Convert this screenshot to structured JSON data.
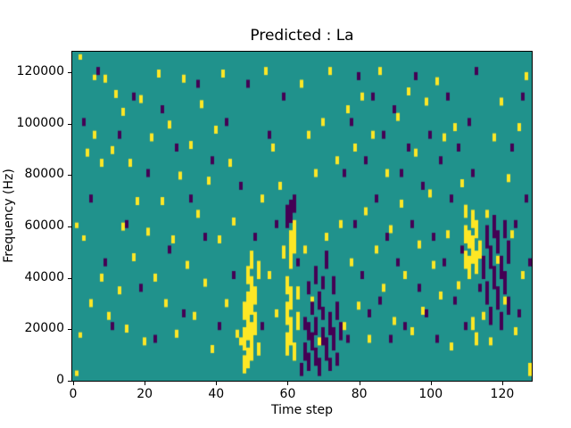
{
  "figure": {
    "title": "Predicted : La",
    "xlabel": "Time step",
    "ylabel": "Frequency (Hz)"
  },
  "chart_data": {
    "type": "heatmap",
    "title": "Predicted : La",
    "xlabel": "Time step",
    "ylabel": "Frequency (Hz)",
    "x_range": [
      0,
      129
    ],
    "y_range": [
      0,
      129000
    ],
    "x_ticks": [
      0,
      20,
      40,
      60,
      80,
      100,
      120
    ],
    "y_ticks": [
      0,
      20000,
      40000,
      60000,
      80000,
      100000,
      120000
    ],
    "grid": {
      "cols": 129,
      "rows": 129,
      "row_unit_hz": 1000
    },
    "colors": {
      "background": "#20928c",
      "high": "#fde725",
      "low": "#440154"
    },
    "legend": "none",
    "value_classes": [
      "mid (teal)",
      "high (yellow)",
      "low (purple)"
    ],
    "cells": {
      "yellow_runs": [
        [
          1,
          60,
          61
        ],
        [
          1,
          2,
          3
        ],
        [
          2,
          17,
          18
        ],
        [
          2,
          126,
          127
        ],
        [
          3,
          55,
          56
        ],
        [
          4,
          88,
          90
        ],
        [
          5,
          29,
          31
        ],
        [
          6,
          95,
          97
        ],
        [
          6,
          118,
          119
        ],
        [
          8,
          39,
          41
        ],
        [
          8,
          84,
          86
        ],
        [
          9,
          117,
          119
        ],
        [
          10,
          24,
          26
        ],
        [
          11,
          89,
          91
        ],
        [
          12,
          111,
          113
        ],
        [
          13,
          34,
          36
        ],
        [
          14,
          59,
          61
        ],
        [
          14,
          104,
          106
        ],
        [
          15,
          19,
          21
        ],
        [
          16,
          84,
          86
        ],
        [
          17,
          47,
          49
        ],
        [
          18,
          69,
          71
        ],
        [
          19,
          109,
          111
        ],
        [
          20,
          14,
          16
        ],
        [
          21,
          57,
          59
        ],
        [
          22,
          94,
          96
        ],
        [
          23,
          39,
          41
        ],
        [
          24,
          119,
          121
        ],
        [
          25,
          69,
          71
        ],
        [
          26,
          29,
          31
        ],
        [
          27,
          99,
          101
        ],
        [
          28,
          54,
          56
        ],
        [
          29,
          17,
          19
        ],
        [
          30,
          79,
          81
        ],
        [
          31,
          117,
          119
        ],
        [
          32,
          44,
          46
        ],
        [
          33,
          91,
          93
        ],
        [
          34,
          24,
          26
        ],
        [
          35,
          64,
          66
        ],
        [
          36,
          107,
          109
        ],
        [
          37,
          37,
          39
        ],
        [
          38,
          77,
          79
        ],
        [
          39,
          11,
          13
        ],
        [
          40,
          97,
          99
        ],
        [
          41,
          54,
          56
        ],
        [
          42,
          119,
          121
        ],
        [
          43,
          29,
          31
        ],
        [
          44,
          84,
          86
        ],
        [
          45,
          61,
          63
        ],
        [
          46,
          17,
          19
        ],
        [
          47,
          14,
          16
        ],
        [
          48,
          3,
          9
        ],
        [
          48,
          12,
          20
        ],
        [
          48,
          24,
          30
        ],
        [
          49,
          5,
          12
        ],
        [
          49,
          16,
          34
        ],
        [
          49,
          38,
          44
        ],
        [
          50,
          8,
          22
        ],
        [
          50,
          26,
          40
        ],
        [
          50,
          44,
          50
        ],
        [
          51,
          18,
          26
        ],
        [
          51,
          30,
          36
        ],
        [
          52,
          40,
          46
        ],
        [
          52,
          10,
          14
        ],
        [
          53,
          70,
          72
        ],
        [
          54,
          120,
          122
        ],
        [
          55,
          40,
          42
        ],
        [
          56,
          90,
          92
        ],
        [
          57,
          25,
          27
        ],
        [
          58,
          75,
          77
        ],
        [
          59,
          48,
          52
        ],
        [
          60,
          10,
          18
        ],
        [
          60,
          22,
          30
        ],
        [
          60,
          34,
          40
        ],
        [
          61,
          14,
          24
        ],
        [
          61,
          28,
          36
        ],
        [
          61,
          44,
          58
        ],
        [
          62,
          8,
          14
        ],
        [
          62,
          50,
          62
        ],
        [
          63,
          20,
          26
        ],
        [
          63,
          32,
          36
        ],
        [
          64,
          115,
          117
        ],
        [
          65,
          50,
          52
        ],
        [
          66,
          95,
          97
        ],
        [
          67,
          30,
          32
        ],
        [
          68,
          80,
          82
        ],
        [
          69,
          14,
          16
        ],
        [
          70,
          100,
          102
        ],
        [
          71,
          55,
          57
        ],
        [
          72,
          120,
          122
        ],
        [
          73,
          35,
          37
        ],
        [
          74,
          85,
          87
        ],
        [
          75,
          60,
          62
        ],
        [
          76,
          20,
          22
        ],
        [
          77,
          105,
          107
        ],
        [
          78,
          45,
          47
        ],
        [
          79,
          90,
          92
        ],
        [
          80,
          28,
          30
        ],
        [
          81,
          110,
          112
        ],
        [
          82,
          65,
          67
        ],
        [
          83,
          15,
          17
        ],
        [
          84,
          95,
          97
        ],
        [
          85,
          50,
          52
        ],
        [
          86,
          120,
          122
        ],
        [
          87,
          35,
          37
        ],
        [
          88,
          80,
          82
        ],
        [
          89,
          58,
          60
        ],
        [
          90,
          22,
          24
        ],
        [
          91,
          102,
          104
        ],
        [
          92,
          68,
          70
        ],
        [
          93,
          40,
          42
        ],
        [
          94,
          112,
          114
        ],
        [
          95,
          18,
          20
        ],
        [
          96,
          88,
          90
        ],
        [
          97,
          52,
          54
        ],
        [
          98,
          26,
          28
        ],
        [
          99,
          108,
          110
        ],
        [
          100,
          72,
          74
        ],
        [
          101,
          44,
          46
        ],
        [
          102,
          116,
          118
        ],
        [
          103,
          32,
          34
        ],
        [
          104,
          94,
          96
        ],
        [
          105,
          56,
          58
        ],
        [
          106,
          12,
          14
        ],
        [
          107,
          98,
          100
        ],
        [
          108,
          36,
          38
        ],
        [
          109,
          76,
          78
        ],
        [
          110,
          44,
          50
        ],
        [
          110,
          54,
          60
        ],
        [
          110,
          64,
          68
        ],
        [
          111,
          40,
          48
        ],
        [
          111,
          52,
          58
        ],
        [
          112,
          46,
          56
        ],
        [
          112,
          60,
          66
        ],
        [
          112,
          20,
          24
        ],
        [
          113,
          42,
          50
        ],
        [
          113,
          56,
          62
        ],
        [
          113,
          14,
          18
        ],
        [
          114,
          48,
          54
        ],
        [
          115,
          24,
          26
        ],
        [
          116,
          64,
          66
        ],
        [
          117,
          14,
          16
        ],
        [
          118,
          94,
          96
        ],
        [
          119,
          46,
          48
        ],
        [
          120,
          108,
          110
        ],
        [
          121,
          30,
          32
        ],
        [
          122,
          78,
          80
        ],
        [
          123,
          56,
          58
        ],
        [
          124,
          18,
          20
        ],
        [
          125,
          98,
          100
        ],
        [
          126,
          40,
          42
        ],
        [
          127,
          118,
          120
        ],
        [
          128,
          2,
          6
        ]
      ],
      "purple_runs": [
        [
          3,
          100,
          102
        ],
        [
          5,
          70,
          72
        ],
        [
          7,
          120,
          122
        ],
        [
          9,
          45,
          47
        ],
        [
          11,
          20,
          22
        ],
        [
          13,
          95,
          97
        ],
        [
          15,
          60,
          62
        ],
        [
          17,
          110,
          112
        ],
        [
          19,
          35,
          37
        ],
        [
          21,
          80,
          82
        ],
        [
          23,
          15,
          17
        ],
        [
          25,
          105,
          107
        ],
        [
          27,
          50,
          52
        ],
        [
          29,
          90,
          92
        ],
        [
          31,
          25,
          27
        ],
        [
          33,
          70,
          72
        ],
        [
          35,
          115,
          117
        ],
        [
          37,
          55,
          57
        ],
        [
          39,
          85,
          87
        ],
        [
          41,
          20,
          22
        ],
        [
          43,
          100,
          102
        ],
        [
          45,
          40,
          42
        ],
        [
          47,
          75,
          77
        ],
        [
          49,
          115,
          117
        ],
        [
          51,
          55,
          57
        ],
        [
          53,
          20,
          22
        ],
        [
          55,
          95,
          97
        ],
        [
          57,
          60,
          62
        ],
        [
          59,
          110,
          112
        ],
        [
          60,
          60,
          68
        ],
        [
          61,
          62,
          70
        ],
        [
          62,
          66,
          72
        ],
        [
          63,
          45,
          47
        ],
        [
          64,
          2,
          6
        ],
        [
          65,
          8,
          14
        ],
        [
          65,
          20,
          24
        ],
        [
          66,
          4,
          10
        ],
        [
          66,
          16,
          22
        ],
        [
          66,
          34,
          38
        ],
        [
          67,
          12,
          18
        ],
        [
          67,
          26,
          30
        ],
        [
          68,
          6,
          12
        ],
        [
          68,
          18,
          24
        ],
        [
          68,
          38,
          44
        ],
        [
          69,
          2,
          8
        ],
        [
          69,
          28,
          34
        ],
        [
          70,
          14,
          20
        ],
        [
          70,
          24,
          28
        ],
        [
          70,
          36,
          40
        ],
        [
          71,
          8,
          16
        ],
        [
          71,
          44,
          50
        ],
        [
          72,
          18,
          26
        ],
        [
          72,
          4,
          8
        ],
        [
          73,
          12,
          20
        ],
        [
          73,
          34,
          40
        ],
        [
          74,
          24,
          30
        ],
        [
          74,
          6,
          10
        ],
        [
          75,
          16,
          22
        ],
        [
          76,
          80,
          82
        ],
        [
          77,
          15,
          17
        ],
        [
          78,
          100,
          102
        ],
        [
          79,
          60,
          62
        ],
        [
          80,
          118,
          120
        ],
        [
          81,
          40,
          42
        ],
        [
          82,
          85,
          87
        ],
        [
          83,
          25,
          27
        ],
        [
          84,
          110,
          112
        ],
        [
          85,
          70,
          72
        ],
        [
          86,
          30,
          32
        ],
        [
          87,
          95,
          97
        ],
        [
          88,
          55,
          57
        ],
        [
          89,
          15,
          17
        ],
        [
          90,
          105,
          107
        ],
        [
          91,
          45,
          47
        ],
        [
          92,
          80,
          82
        ],
        [
          93,
          20,
          22
        ],
        [
          94,
          90,
          92
        ],
        [
          95,
          60,
          62
        ],
        [
          96,
          118,
          120
        ],
        [
          97,
          35,
          37
        ],
        [
          98,
          75,
          77
        ],
        [
          99,
          25,
          27
        ],
        [
          100,
          95,
          97
        ],
        [
          101,
          55,
          57
        ],
        [
          102,
          15,
          17
        ],
        [
          103,
          85,
          87
        ],
        [
          104,
          45,
          47
        ],
        [
          105,
          110,
          112
        ],
        [
          106,
          70,
          72
        ],
        [
          107,
          30,
          32
        ],
        [
          108,
          90,
          92
        ],
        [
          109,
          50,
          52
        ],
        [
          110,
          20,
          22
        ],
        [
          111,
          100,
          102
        ],
        [
          112,
          80,
          82
        ],
        [
          113,
          120,
          122
        ],
        [
          114,
          35,
          37
        ],
        [
          115,
          40,
          48
        ],
        [
          116,
          30,
          38
        ],
        [
          116,
          52,
          60
        ],
        [
          117,
          44,
          52
        ],
        [
          117,
          22,
          28
        ],
        [
          118,
          36,
          44
        ],
        [
          118,
          56,
          64
        ],
        [
          119,
          28,
          36
        ],
        [
          119,
          50,
          58
        ],
        [
          120,
          40,
          48
        ],
        [
          120,
          20,
          26
        ],
        [
          121,
          34,
          42
        ],
        [
          121,
          56,
          62
        ],
        [
          122,
          26,
          32
        ],
        [
          122,
          46,
          54
        ],
        [
          123,
          90,
          92
        ],
        [
          124,
          60,
          62
        ],
        [
          125,
          25,
          27
        ],
        [
          126,
          110,
          112
        ],
        [
          127,
          70,
          72
        ],
        [
          128,
          45,
          47
        ]
      ]
    }
  },
  "plot_geometry_note": "matplotlib-style axes; ticks outside, black spines"
}
